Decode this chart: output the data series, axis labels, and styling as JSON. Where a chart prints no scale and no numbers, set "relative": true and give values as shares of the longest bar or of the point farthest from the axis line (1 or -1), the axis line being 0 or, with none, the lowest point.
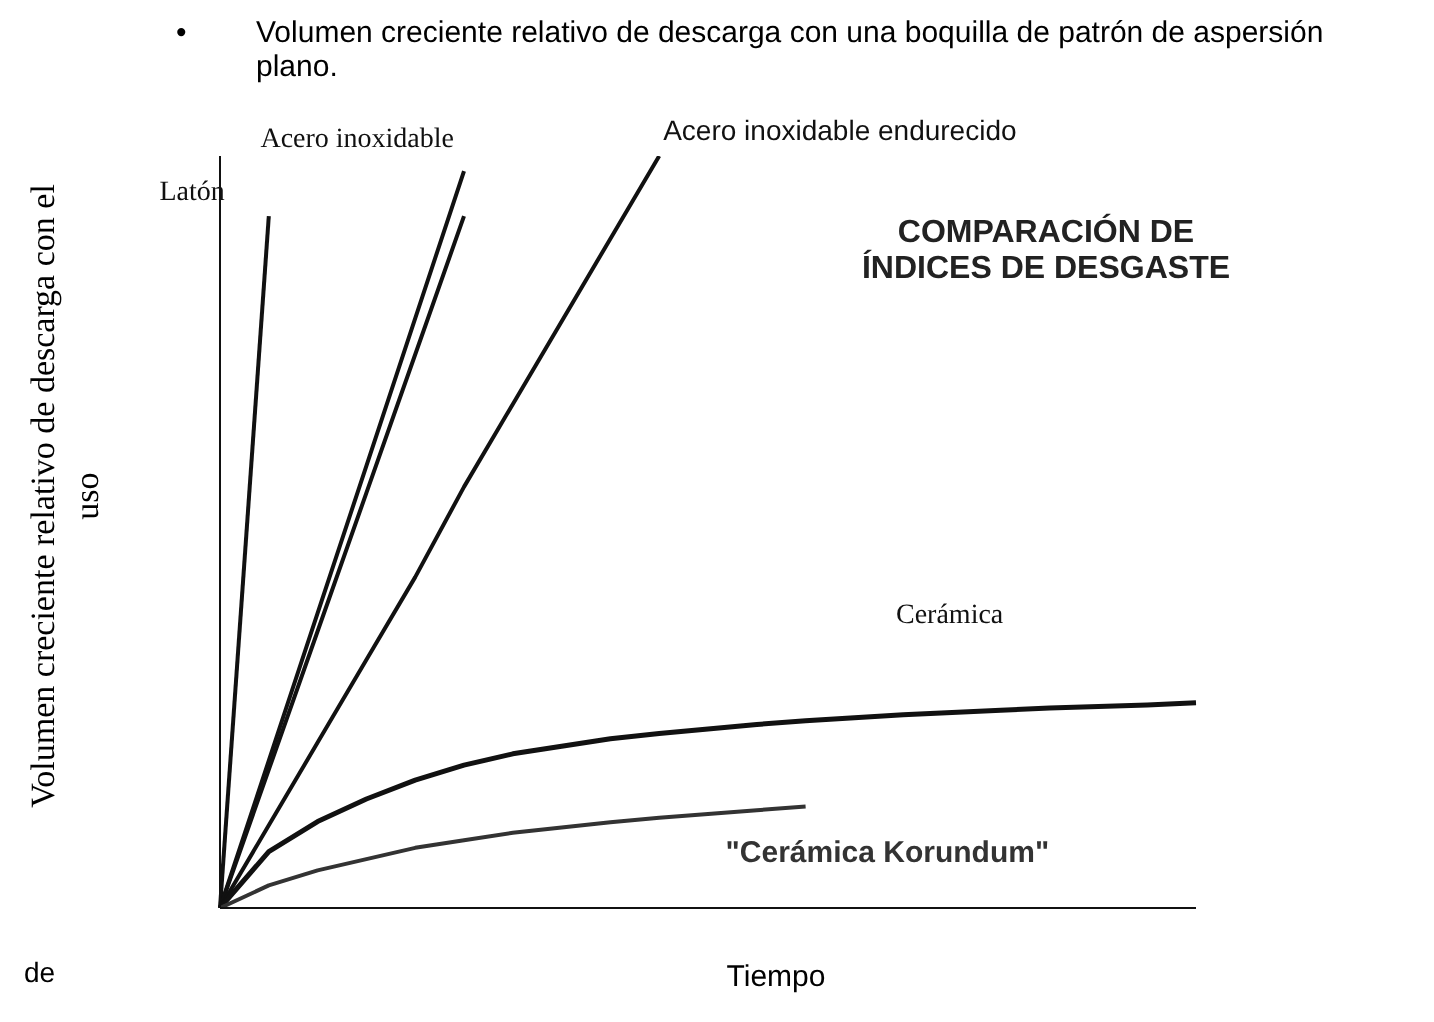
{
  "chart_data": {
    "type": "line",
    "title": "Volumen creciente relativo de descarga con una boquilla de patrón de aspersión plano.",
    "xlabel": "Tiempo",
    "ylabel": "Volumen creciente relativo de descarga con el uso",
    "relative": true,
    "marker": "none",
    "line_style": "solid",
    "annotations": [
      "•",
      "COMPARACIÓN DE ÍNDICES DE DESGASTE",
      "de"
    ],
    "categories": [
      null,
      null,
      null,
      null,
      null,
      null,
      null,
      null,
      null,
      null,
      null,
      null,
      null,
      null,
      null,
      null,
      null,
      null,
      null,
      null,
      null
    ],
    "series": [
      {
        "name": "Latón",
        "color": "#111111",
        "values": [
          0,
          0.92,
          null,
          null,
          null,
          null,
          null,
          null,
          null,
          null,
          null,
          null,
          null,
          null,
          null,
          null,
          null,
          null,
          null,
          null,
          null
        ]
      },
      {
        "name": "Acero inoxidable",
        "color": "#111111",
        "values": [
          0,
          0.196,
          0.392,
          0.588,
          0.784,
          0.98,
          null,
          null,
          null,
          null,
          null,
          null,
          null,
          null,
          null,
          null,
          null,
          null,
          null,
          null,
          null
        ]
      },
      {
        "name": null,
        "color": "#111111",
        "values": [
          0,
          0.184,
          0.368,
          0.552,
          0.736,
          0.92,
          null,
          null,
          null,
          null,
          null,
          null,
          null,
          null,
          null,
          null,
          null,
          null,
          null,
          null,
          null
        ]
      },
      {
        "name": "Acero inoxidable endurecido",
        "color": "#111111",
        "values": [
          0,
          0.11,
          0.22,
          0.33,
          0.44,
          0.56,
          0.67,
          0.78,
          0.89,
          1,
          null,
          null,
          null,
          null,
          null,
          null,
          null,
          null,
          null,
          null,
          null
        ]
      },
      {
        "name": "Cerámica",
        "color": "#111111",
        "values": [
          0,
          0.075,
          0.115,
          0.145,
          0.17,
          0.19,
          0.205,
          0.215,
          0.225,
          0.232,
          0.238,
          0.244,
          0.249,
          0.253,
          0.257,
          0.26,
          0.263,
          0.266,
          0.268,
          0.27,
          0.273
        ]
      },
      {
        "name": "\"Cerámica Korundum\"",
        "color": "#333333",
        "values": [
          0,
          0.03,
          0.05,
          0.065,
          0.08,
          0.09,
          0.1,
          0.107,
          0.114,
          0.12,
          0.125,
          0.13,
          0.135,
          null,
          null,
          null,
          null,
          null,
          null,
          null,
          null
        ]
      }
    ]
  }
}
